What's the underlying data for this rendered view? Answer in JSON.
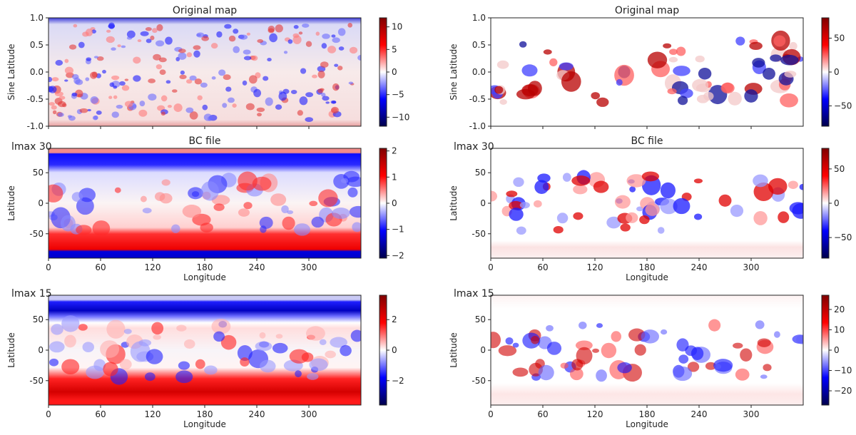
{
  "panels": [
    {
      "id": "left-original",
      "title": "Original map",
      "side_label": "",
      "ylabel": "Sine Latitude",
      "xlabel": "",
      "ylim": [
        -1.0,
        1.0
      ],
      "yticks": [
        "1.0",
        "0.5",
        "0.0",
        "-0.5",
        "-1.0"
      ],
      "xticks": [],
      "cbar_ticks": [
        "10",
        "5",
        "0",
        "-5",
        "-10"
      ],
      "cbar_range": [
        -12,
        12
      ]
    },
    {
      "id": "right-original",
      "title": "Original map",
      "side_label": "",
      "ylabel": "Sine Latitude",
      "xlabel": "",
      "ylim": [
        -1.0,
        1.0
      ],
      "yticks": [
        "1.0",
        "0.5",
        "0.0",
        "-0.5",
        "-1.0"
      ],
      "xticks": [],
      "cbar_ticks": [
        "50",
        "0",
        "-50"
      ],
      "cbar_range": [
        -80,
        80
      ]
    },
    {
      "id": "left-lmax30",
      "title": "BC file",
      "side_label": "lmax 30",
      "ylabel": "Latitude",
      "xlabel": "Longitude",
      "ylim": [
        -90,
        90
      ],
      "yticks": [
        "50",
        "0",
        "-50"
      ],
      "xticks": [
        "0",
        "60",
        "120",
        "180",
        "240",
        "300"
      ],
      "cbar_ticks": [
        "2",
        "1",
        "0",
        "-1",
        "-2"
      ],
      "cbar_range": [
        -2.1,
        2.1
      ]
    },
    {
      "id": "right-lmax30",
      "title": "BC file",
      "side_label": "lmax 30",
      "ylabel": "Latitude",
      "xlabel": "Longitude",
      "ylim": [
        -90,
        90
      ],
      "yticks": [
        "50",
        "0",
        "-50"
      ],
      "xticks": [
        "0",
        "60",
        "120",
        "180",
        "240",
        "300"
      ],
      "cbar_ticks": [
        "50",
        "0",
        "-50"
      ],
      "cbar_range": [
        -80,
        80
      ]
    },
    {
      "id": "left-lmax15",
      "title": "",
      "side_label": "lmax 15",
      "ylabel": "Latitude",
      "xlabel": "Longitude",
      "ylim": [
        -90,
        90
      ],
      "yticks": [
        "50",
        "0",
        "-50"
      ],
      "xticks": [
        "0",
        "60",
        "120",
        "180",
        "240",
        "300"
      ],
      "cbar_ticks": [
        "2",
        "0",
        "-2"
      ],
      "cbar_range": [
        -3.6,
        3.6
      ]
    },
    {
      "id": "right-lmax15",
      "title": "",
      "side_label": "lmax 15",
      "ylabel": "Latitude",
      "xlabel": "Longitude",
      "ylim": [
        -90,
        90
      ],
      "yticks": [
        "50",
        "0",
        "-50"
      ],
      "xticks": [
        "0",
        "60",
        "120",
        "180",
        "240",
        "300"
      ],
      "cbar_ticks": [
        "20",
        "10",
        "0",
        "-10",
        "-20"
      ],
      "cbar_range": [
        -27,
        27
      ]
    }
  ],
  "chart_data": {
    "type": "heatmap",
    "colormap": "seismic",
    "colormap_stops": [
      "#00004c",
      "#0000ff",
      "#ffffff",
      "#ff0000",
      "#800000"
    ],
    "x_range": [
      0,
      360
    ],
    "panels": [
      {
        "title": "Original map",
        "ylabel": "Sine Latitude",
        "ylim": [
          -1.0,
          1.0
        ],
        "cbar_ticks": [
          10,
          5,
          0,
          -5,
          -10
        ]
      },
      {
        "title": "Original map",
        "ylabel": "Sine Latitude",
        "ylim": [
          -1.0,
          1.0
        ],
        "cbar_ticks": [
          50,
          0,
          -50
        ]
      },
      {
        "title": "BC file",
        "label": "lmax 30",
        "ylabel": "Latitude",
        "xlabel": "Longitude",
        "ylim": [
          -90,
          90
        ],
        "xticks": [
          0,
          60,
          120,
          180,
          240,
          300
        ],
        "cbar_ticks": [
          2,
          1,
          0,
          -1,
          -2
        ]
      },
      {
        "title": "BC file",
        "label": "lmax 30",
        "ylabel": "Latitude",
        "xlabel": "Longitude",
        "ylim": [
          -90,
          90
        ],
        "xticks": [
          0,
          60,
          120,
          180,
          240,
          300
        ],
        "cbar_ticks": [
          50,
          0,
          -50
        ]
      },
      {
        "label": "lmax 15",
        "ylabel": "Latitude",
        "xlabel": "Longitude",
        "ylim": [
          -90,
          90
        ],
        "xticks": [
          0,
          60,
          120,
          180,
          240,
          300
        ],
        "cbar_ticks": [
          2,
          0,
          -2
        ]
      },
      {
        "label": "lmax 15",
        "ylabel": "Latitude",
        "xlabel": "Longitude",
        "ylim": [
          -90,
          90
        ],
        "xticks": [
          0,
          60,
          120,
          180,
          240,
          300
        ],
        "cbar_ticks": [
          20,
          10,
          0,
          -10,
          -20
        ]
      }
    ]
  }
}
